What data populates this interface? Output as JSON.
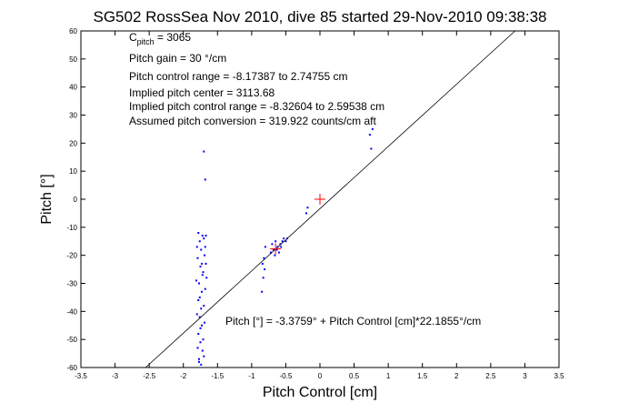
{
  "chart_data": {
    "type": "scatter",
    "title": "SG502 RossSea Nov 2010, dive 85 started 29-Nov-2010 09:38:38",
    "xlabel": "Pitch Control [cm]",
    "ylabel": "Pitch [°]",
    "xlim": [
      -3.5,
      3.5
    ],
    "ylim": [
      -60,
      60
    ],
    "xticks": [
      -3.5,
      -3,
      -2.5,
      -2,
      -1.5,
      -1,
      -0.5,
      0,
      0.5,
      1,
      1.5,
      2,
      2.5,
      3,
      3.5
    ],
    "xtick_labels": [
      "-3.5",
      "-3",
      "-2.5",
      "-2",
      "-1.5",
      "-1",
      "-0.5",
      "0",
      "0.5",
      "1",
      "1.5",
      "2",
      "2.5",
      "3",
      "3.5"
    ],
    "yticks": [
      -60,
      -50,
      -40,
      -30,
      -20,
      -10,
      0,
      10,
      20,
      30,
      40,
      50,
      60
    ],
    "ytick_labels": [
      "-60",
      "-50",
      "-40",
      "-30",
      "-20",
      "-10",
      "0",
      "10",
      "20",
      "30",
      "40",
      "50",
      "60"
    ],
    "grid": false,
    "annotations": {
      "cpitch_main": "C",
      "cpitch_sub": "pitch",
      "cpitch_value": " = 3065",
      "lines": [
        "Pitch gain = 30 °/cm",
        "Pitch control range = -8.17387 to 2.74755 cm",
        "Implied pitch center = 3113.68",
        "Implied pitch control range = -8.32604 to 2.59538 cm",
        "Assumed pitch conversion = 319.922 counts/cm aft"
      ],
      "fit_equation": "Pitch [°] = -3.3759° + Pitch Control [cm]*22.1855°/cm"
    },
    "fit_line": {
      "intercept": -3.3759,
      "slope": 22.1855
    },
    "series": [
      {
        "marker": "dot",
        "color": "#0000ff",
        "points": [
          [
            -1.78,
            -12
          ],
          [
            -1.76,
            -15
          ],
          [
            -1.74,
            -18
          ],
          [
            -1.79,
            -21
          ],
          [
            -1.75,
            -24
          ],
          [
            -1.72,
            -27
          ],
          [
            -1.77,
            -30
          ],
          [
            -1.73,
            -33
          ],
          [
            -1.78,
            -36
          ],
          [
            -1.74,
            -39
          ],
          [
            -1.76,
            -42
          ],
          [
            -1.73,
            -45
          ],
          [
            -1.78,
            -48
          ],
          [
            -1.75,
            -51
          ],
          [
            -1.72,
            -54
          ],
          [
            -1.77,
            -57
          ],
          [
            -1.74,
            -59
          ],
          [
            -1.7,
            -14
          ],
          [
            -1.69,
            -20
          ],
          [
            -1.71,
            -26
          ],
          [
            -1.68,
            -32
          ],
          [
            -1.7,
            -38
          ],
          [
            -1.69,
            -44
          ],
          [
            -1.71,
            -50
          ],
          [
            -1.7,
            -56
          ],
          [
            -1.8,
            -17
          ],
          [
            -1.81,
            -29
          ],
          [
            -1.8,
            -41
          ],
          [
            -1.79,
            -53
          ],
          [
            -1.72,
            -13
          ],
          [
            -1.73,
            -23
          ],
          [
            -1.76,
            -35
          ],
          [
            -1.75,
            -46
          ],
          [
            -1.77,
            -58
          ],
          [
            -1.67,
            -13
          ],
          [
            -1.68,
            -17
          ],
          [
            -1.67,
            -23
          ],
          [
            -1.66,
            -28
          ],
          [
            -1.68,
            7
          ],
          [
            -1.7,
            17
          ],
          [
            -0.82,
            -21
          ],
          [
            -0.84,
            -23
          ],
          [
            -0.81,
            -25
          ],
          [
            -0.83,
            -28
          ],
          [
            -0.85,
            -33
          ],
          [
            -0.8,
            -17
          ],
          [
            -0.7,
            -16
          ],
          [
            -0.68,
            -18
          ],
          [
            -0.65,
            -15
          ],
          [
            -0.62,
            -17
          ],
          [
            -0.6,
            -19
          ],
          [
            -0.58,
            -16
          ],
          [
            -0.55,
            -15
          ],
          [
            -0.53,
            -14
          ],
          [
            -0.66,
            -20
          ],
          [
            -0.63,
            -18
          ],
          [
            -0.57,
            -17
          ],
          [
            -0.5,
            -15
          ],
          [
            -0.48,
            -14
          ],
          [
            -0.72,
            -19
          ],
          [
            -0.2,
            -5
          ],
          [
            -0.18,
            -3
          ],
          [
            0.73,
            23
          ],
          [
            0.75,
            18
          ],
          [
            0.77,
            25
          ]
        ]
      },
      {
        "marker": "plus",
        "color": "#ff0000",
        "points": [
          [
            0.0,
            0.0
          ],
          [
            -0.65,
            -17.7
          ]
        ]
      }
    ]
  }
}
